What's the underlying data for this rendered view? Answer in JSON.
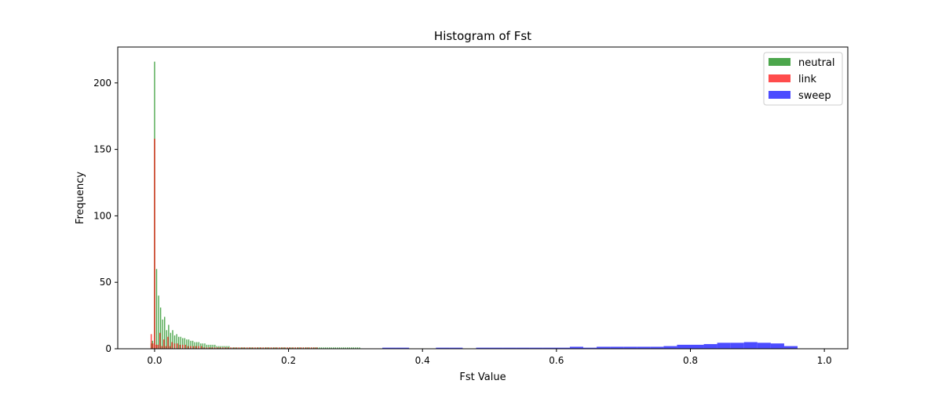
{
  "chart_data": {
    "type": "histogram",
    "title": "Histogram of Fst",
    "xlabel": "Fst Value",
    "ylabel": "Frequency",
    "xlim": [
      -0.055,
      1.035
    ],
    "ylim": [
      0,
      227
    ],
    "xticks": [
      "0.0",
      "0.2",
      "0.4",
      "0.6",
      "0.8",
      "1.0"
    ],
    "yticks": [
      "0",
      "50",
      "100",
      "150",
      "200"
    ],
    "grid": false,
    "legend_position": "top-right",
    "series": [
      {
        "name": "neutral",
        "color": "#008000",
        "opacity": 0.7,
        "bin_width": 0.0016,
        "bins": [
          [
            -0.005,
            4
          ],
          [
            -0.003,
            6
          ],
          [
            0.0,
            216
          ],
          [
            0.003,
            60
          ],
          [
            0.006,
            40
          ],
          [
            0.009,
            31
          ],
          [
            0.012,
            22
          ],
          [
            0.015,
            24
          ],
          [
            0.018,
            14
          ],
          [
            0.021,
            18
          ],
          [
            0.024,
            12
          ],
          [
            0.027,
            14
          ],
          [
            0.03,
            10
          ],
          [
            0.033,
            11
          ],
          [
            0.036,
            9
          ],
          [
            0.039,
            9
          ],
          [
            0.042,
            8
          ],
          [
            0.045,
            8
          ],
          [
            0.048,
            7
          ],
          [
            0.051,
            7
          ],
          [
            0.054,
            6
          ],
          [
            0.057,
            6
          ],
          [
            0.06,
            5
          ],
          [
            0.063,
            5
          ],
          [
            0.066,
            5
          ],
          [
            0.069,
            4
          ],
          [
            0.072,
            4
          ],
          [
            0.075,
            4
          ],
          [
            0.078,
            3
          ],
          [
            0.081,
            3
          ],
          [
            0.084,
            3
          ],
          [
            0.087,
            3
          ],
          [
            0.09,
            3
          ],
          [
            0.093,
            2
          ],
          [
            0.096,
            2
          ],
          [
            0.099,
            2
          ],
          [
            0.102,
            2
          ],
          [
            0.105,
            2
          ],
          [
            0.108,
            2
          ],
          [
            0.111,
            2
          ],
          [
            0.114,
            1
          ],
          [
            0.117,
            1
          ],
          [
            0.12,
            1
          ],
          [
            0.123,
            1
          ],
          [
            0.126,
            1
          ],
          [
            0.129,
            1
          ],
          [
            0.132,
            1
          ],
          [
            0.135,
            1
          ],
          [
            0.138,
            1
          ],
          [
            0.141,
            1
          ],
          [
            0.144,
            1
          ],
          [
            0.147,
            1
          ],
          [
            0.15,
            1
          ],
          [
            0.153,
            1
          ],
          [
            0.156,
            1
          ],
          [
            0.159,
            1
          ],
          [
            0.162,
            1
          ],
          [
            0.165,
            1
          ],
          [
            0.168,
            1
          ],
          [
            0.171,
            1
          ],
          [
            0.174,
            1
          ],
          [
            0.177,
            1
          ],
          [
            0.18,
            1
          ],
          [
            0.183,
            1
          ],
          [
            0.186,
            1
          ],
          [
            0.189,
            1
          ],
          [
            0.192,
            1
          ],
          [
            0.195,
            1
          ],
          [
            0.198,
            1
          ],
          [
            0.201,
            1
          ],
          [
            0.204,
            1
          ],
          [
            0.207,
            1
          ],
          [
            0.21,
            1
          ],
          [
            0.213,
            1
          ],
          [
            0.216,
            1
          ],
          [
            0.219,
            1
          ],
          [
            0.222,
            1
          ],
          [
            0.225,
            1
          ],
          [
            0.228,
            1
          ],
          [
            0.231,
            1
          ],
          [
            0.234,
            1
          ],
          [
            0.237,
            1
          ],
          [
            0.24,
            1
          ],
          [
            0.243,
            1
          ],
          [
            0.246,
            1
          ],
          [
            0.249,
            1
          ],
          [
            0.252,
            1
          ],
          [
            0.255,
            1
          ],
          [
            0.258,
            1
          ],
          [
            0.261,
            1
          ],
          [
            0.264,
            1
          ],
          [
            0.267,
            1
          ],
          [
            0.27,
            1
          ],
          [
            0.273,
            1
          ],
          [
            0.276,
            1
          ],
          [
            0.279,
            1
          ],
          [
            0.282,
            1
          ],
          [
            0.285,
            1
          ],
          [
            0.288,
            1
          ],
          [
            0.291,
            1
          ],
          [
            0.294,
            1
          ],
          [
            0.297,
            1
          ],
          [
            0.3,
            1
          ],
          [
            0.303,
            1
          ],
          [
            0.306,
            1
          ]
        ]
      },
      {
        "name": "link",
        "color": "#ff0000",
        "opacity": 0.7,
        "bin_width": 0.0018,
        "bins": [
          [
            -0.005,
            11
          ],
          [
            -0.0025,
            4
          ],
          [
            0.0,
            158
          ],
          [
            0.0025,
            3
          ],
          [
            0.005,
            3
          ],
          [
            0.008,
            12
          ],
          [
            0.011,
            2
          ],
          [
            0.014,
            7
          ],
          [
            0.017,
            2
          ],
          [
            0.02,
            9
          ],
          [
            0.023,
            2
          ],
          [
            0.026,
            5
          ],
          [
            0.03,
            4
          ],
          [
            0.034,
            4
          ],
          [
            0.038,
            3
          ],
          [
            0.042,
            3
          ],
          [
            0.046,
            3
          ],
          [
            0.05,
            2
          ],
          [
            0.054,
            2
          ],
          [
            0.058,
            2
          ],
          [
            0.062,
            2
          ],
          [
            0.066,
            2
          ],
          [
            0.07,
            2
          ],
          [
            0.074,
            1
          ],
          [
            0.078,
            1
          ],
          [
            0.082,
            1
          ],
          [
            0.086,
            1
          ],
          [
            0.09,
            1
          ],
          [
            0.094,
            1
          ],
          [
            0.098,
            1
          ],
          [
            0.102,
            1
          ],
          [
            0.106,
            1
          ],
          [
            0.11,
            1
          ],
          [
            0.114,
            1
          ],
          [
            0.118,
            1
          ],
          [
            0.122,
            1
          ],
          [
            0.126,
            1
          ],
          [
            0.13,
            1
          ],
          [
            0.134,
            1
          ],
          [
            0.138,
            1
          ],
          [
            0.142,
            1
          ],
          [
            0.146,
            1
          ],
          [
            0.15,
            1
          ],
          [
            0.154,
            1
          ],
          [
            0.158,
            1
          ],
          [
            0.162,
            1
          ],
          [
            0.166,
            1
          ],
          [
            0.17,
            1
          ],
          [
            0.174,
            1
          ],
          [
            0.178,
            1
          ],
          [
            0.182,
            1
          ],
          [
            0.186,
            1
          ],
          [
            0.19,
            1
          ],
          [
            0.194,
            1
          ],
          [
            0.198,
            1
          ],
          [
            0.202,
            1
          ],
          [
            0.206,
            1
          ],
          [
            0.21,
            1
          ],
          [
            0.214,
            1
          ],
          [
            0.218,
            1
          ],
          [
            0.222,
            1
          ],
          [
            0.226,
            1
          ],
          [
            0.23,
            1
          ],
          [
            0.234,
            1
          ],
          [
            0.238,
            1
          ],
          [
            0.242,
            1
          ]
        ]
      },
      {
        "name": "sweep",
        "color": "#0000ff",
        "opacity": 0.7,
        "bin_width": 0.02,
        "bins": [
          [
            0.35,
            0.8
          ],
          [
            0.37,
            0.8
          ],
          [
            0.43,
            0.8
          ],
          [
            0.45,
            0.8
          ],
          [
            0.49,
            0.8
          ],
          [
            0.51,
            0.8
          ],
          [
            0.53,
            0.8
          ],
          [
            0.55,
            0.8
          ],
          [
            0.57,
            0.8
          ],
          [
            0.59,
            0.8
          ],
          [
            0.61,
            0.8
          ],
          [
            0.63,
            1.5
          ],
          [
            0.65,
            0.8
          ],
          [
            0.67,
            1.5
          ],
          [
            0.69,
            1.5
          ],
          [
            0.71,
            1.5
          ],
          [
            0.73,
            1.5
          ],
          [
            0.75,
            1.5
          ],
          [
            0.77,
            2
          ],
          [
            0.79,
            3
          ],
          [
            0.81,
            3
          ],
          [
            0.83,
            3.5
          ],
          [
            0.85,
            4.5
          ],
          [
            0.87,
            4.5
          ],
          [
            0.89,
            5
          ],
          [
            0.91,
            4.5
          ],
          [
            0.93,
            4
          ],
          [
            0.95,
            2
          ]
        ]
      }
    ]
  }
}
